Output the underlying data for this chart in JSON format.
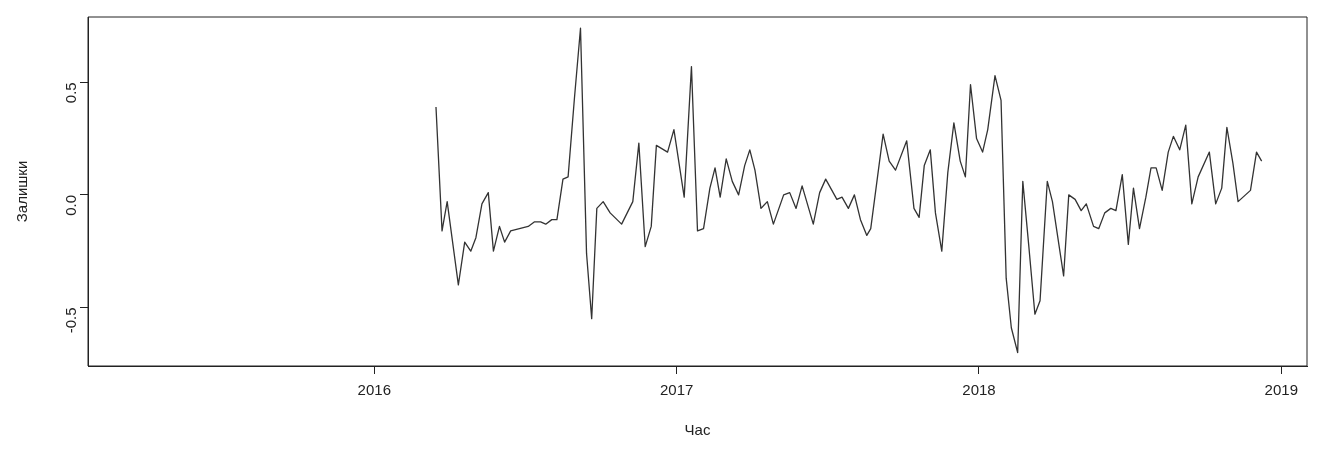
{
  "chart_data": {
    "type": "line",
    "xlabel": "Час",
    "ylabel": "Залишки",
    "xlim": [
      2015.053,
      2019.085
    ],
    "ylim": [
      -0.76,
      0.79
    ],
    "xticks": [
      2016,
      2017,
      2018,
      2019
    ],
    "yticks": [
      -0.5,
      {
        "value": 0,
        "label": "0.0"
      },
      0.5
    ],
    "grid": false,
    "legend": false,
    "marker": "none",
    "line_style": "solid",
    "series": [
      {
        "color": "#333333",
        "x": [
          2016.204,
          2016.224,
          2016.241,
          2016.278,
          2016.299,
          2016.319,
          2016.336,
          2016.356,
          2016.377,
          2016.394,
          2016.414,
          2016.431,
          2016.451,
          2016.509,
          2016.529,
          2016.55,
          2016.567,
          2016.587,
          2016.604,
          2016.624,
          2016.641,
          2016.662,
          2016.682,
          2016.702,
          2016.719,
          2016.736,
          2016.757,
          2016.78,
          2016.818,
          2016.855,
          2016.875,
          2016.896,
          2016.916,
          2016.933,
          2016.97,
          2016.991,
          2017.025,
          2017.049,
          2017.069,
          2017.089,
          2017.11,
          2017.127,
          2017.144,
          2017.164,
          2017.184,
          2017.205,
          2017.225,
          2017.242,
          2017.259,
          2017.279,
          2017.3,
          2017.32,
          2017.354,
          2017.374,
          2017.395,
          2017.415,
          2017.452,
          2017.473,
          2017.493,
          2017.53,
          2017.547,
          2017.568,
          2017.588,
          2017.608,
          2017.629,
          2017.642,
          2017.683,
          2017.703,
          2017.724,
          2017.761,
          2017.785,
          2017.802,
          2017.819,
          2017.839,
          2017.856,
          2017.877,
          2017.897,
          2017.917,
          2017.938,
          2017.955,
          2017.972,
          2017.992,
          2018.012,
          2018.029,
          2018.053,
          2018.073,
          2018.09,
          2018.107,
          2018.128,
          2018.145,
          2018.165,
          2018.185,
          2018.202,
          2018.226,
          2018.243,
          2018.28,
          2018.297,
          2018.318,
          2018.338,
          2018.355,
          2018.379,
          2018.396,
          2018.416,
          2018.436,
          2018.453,
          2018.474,
          2018.494,
          2018.511,
          2018.531,
          2018.552,
          2018.569,
          2018.586,
          2018.606,
          2018.626,
          2018.643,
          2018.664,
          2018.684,
          2018.704,
          2018.725,
          2018.762,
          2018.783,
          2018.803,
          2018.82,
          2018.84,
          2018.857,
          2018.898,
          2018.918,
          2018.935
        ],
        "values": [
          0.39,
          -0.16,
          -0.03,
          -0.4,
          -0.21,
          -0.25,
          -0.19,
          -0.04,
          0.01,
          -0.25,
          -0.14,
          -0.21,
          -0.16,
          -0.14,
          -0.12,
          -0.12,
          -0.13,
          -0.11,
          -0.11,
          0.07,
          0.08,
          0.43,
          0.74,
          -0.26,
          -0.55,
          -0.06,
          -0.03,
          -0.08,
          -0.13,
          -0.03,
          0.23,
          -0.23,
          -0.14,
          0.22,
          0.19,
          0.29,
          -0.01,
          0.57,
          -0.16,
          -0.15,
          0.03,
          0.12,
          -0.01,
          0.16,
          0.06,
          0.0,
          0.13,
          0.2,
          0.11,
          -0.06,
          -0.03,
          -0.13,
          0.0,
          0.01,
          -0.06,
          0.04,
          -0.13,
          0.01,
          0.07,
          -0.02,
          -0.01,
          -0.06,
          0.0,
          -0.11,
          -0.18,
          -0.15,
          0.27,
          0.15,
          0.11,
          0.24,
          -0.06,
          -0.1,
          0.13,
          0.2,
          -0.08,
          -0.25,
          0.1,
          0.32,
          0.15,
          0.08,
          0.49,
          0.25,
          0.19,
          0.29,
          0.53,
          0.42,
          -0.37,
          -0.59,
          -0.7,
          0.06,
          -0.23,
          -0.53,
          -0.47,
          0.06,
          -0.03,
          -0.36,
          0.0,
          -0.02,
          -0.07,
          -0.04,
          -0.14,
          -0.15,
          -0.08,
          -0.06,
          -0.07,
          0.09,
          -0.22,
          0.03,
          -0.15,
          -0.01,
          0.12,
          0.12,
          0.02,
          0.19,
          0.26,
          0.2,
          0.31,
          -0.04,
          0.08,
          0.19,
          -0.04,
          0.03,
          0.3,
          0.14,
          -0.03,
          0.02,
          0.19,
          0.15
        ]
      }
    ]
  }
}
